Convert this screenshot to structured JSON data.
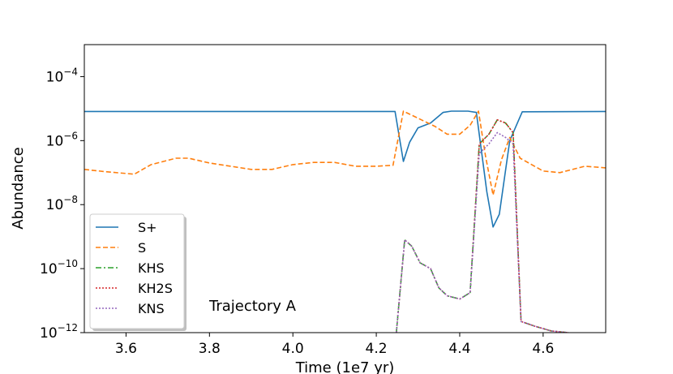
{
  "chart_data": {
    "type": "line",
    "title": "",
    "xlabel": "Time (1e7 yr)",
    "ylabel": "Abundance",
    "xlim": [
      3.5,
      4.75
    ],
    "ylim_log10": [
      -12,
      -3
    ],
    "yscale": "log",
    "xticks": [
      3.6,
      3.8,
      4.0,
      4.2,
      4.4,
      4.6
    ],
    "xtick_labels": [
      "3.6",
      "3.8",
      "4.0",
      "4.2",
      "4.4",
      "4.6"
    ],
    "yticks_log10": [
      -12,
      -10,
      -8,
      -6,
      -4
    ],
    "ytick_labels": [
      {
        "base": "10",
        "exp": "−12"
      },
      {
        "base": "10",
        "exp": "−10"
      },
      {
        "base": "10",
        "exp": "−8"
      },
      {
        "base": "10",
        "exp": "−6"
      },
      {
        "base": "10",
        "exp": "−4"
      }
    ],
    "grid": false,
    "legend_position": "lower-left",
    "annotation": "Trajectory A",
    "series": [
      {
        "name": "S+",
        "color": "#1f77b4",
        "dash": "solid",
        "x": [
          3.5,
          3.7,
          4.0,
          4.245,
          4.265,
          4.28,
          4.3,
          4.33,
          4.36,
          4.38,
          4.4,
          4.42,
          4.44,
          4.465,
          4.48,
          4.495,
          4.52,
          4.55,
          4.75
        ],
        "y_log10": [
          -5.09,
          -5.09,
          -5.09,
          -5.09,
          -6.65,
          -6.05,
          -5.6,
          -5.45,
          -5.12,
          -5.08,
          -5.08,
          -5.08,
          -5.12,
          -7.6,
          -8.7,
          -8.3,
          -6.0,
          -5.1,
          -5.09
        ]
      },
      {
        "name": "S",
        "color": "#ff7f0e",
        "dash": "dashed",
        "x": [
          3.5,
          3.55,
          3.62,
          3.66,
          3.72,
          3.75,
          3.8,
          3.9,
          3.95,
          4.0,
          4.05,
          4.1,
          4.15,
          4.2,
          4.24,
          4.265,
          4.3,
          4.34,
          4.37,
          4.4,
          4.425,
          4.445,
          4.462,
          4.48,
          4.5,
          4.52,
          4.545,
          4.6,
          4.64,
          4.7,
          4.75
        ],
        "y_log10": [
          -6.9,
          -6.97,
          -7.05,
          -6.75,
          -6.55,
          -6.55,
          -6.7,
          -6.9,
          -6.9,
          -6.75,
          -6.68,
          -6.68,
          -6.8,
          -6.8,
          -6.77,
          -5.08,
          -5.3,
          -5.55,
          -5.8,
          -5.8,
          -5.52,
          -5.08,
          -6.5,
          -7.7,
          -6.6,
          -5.9,
          -6.55,
          -6.95,
          -7.0,
          -6.8,
          -6.85
        ]
      },
      {
        "name": "KHS",
        "color": "#2ca02c",
        "dash": "dashdot",
        "x": [
          4.248,
          4.268,
          4.285,
          4.305,
          4.33,
          4.35,
          4.37,
          4.4,
          4.425,
          4.447,
          4.47,
          4.49,
          4.51,
          4.528,
          4.547,
          4.58,
          4.62,
          4.66
        ],
        "y_log10": [
          -12.0,
          -9.1,
          -9.3,
          -9.82,
          -10.0,
          -10.6,
          -10.85,
          -10.95,
          -10.75,
          -6.1,
          -5.8,
          -5.35,
          -5.45,
          -5.75,
          -11.65,
          -11.8,
          -11.95,
          -12.0
        ]
      },
      {
        "name": "KH2S",
        "color": "#d62728",
        "dash": "dotted",
        "x": [
          4.248,
          4.268,
          4.285,
          4.305,
          4.33,
          4.35,
          4.37,
          4.4,
          4.425,
          4.447,
          4.47,
          4.49,
          4.51,
          4.528,
          4.547,
          4.58,
          4.62,
          4.66
        ],
        "y_log10": [
          -12.0,
          -9.1,
          -9.3,
          -9.82,
          -10.0,
          -10.6,
          -10.85,
          -10.95,
          -10.75,
          -6.1,
          -5.8,
          -5.35,
          -5.45,
          -5.75,
          -11.65,
          -11.8,
          -11.95,
          -12.0
        ]
      },
      {
        "name": "KNS",
        "color": "#9467bd",
        "dash": "dotted",
        "x": [
          4.248,
          4.268,
          4.285,
          4.305,
          4.33,
          4.35,
          4.37,
          4.4,
          4.425,
          4.447,
          4.47,
          4.49,
          4.51,
          4.528,
          4.547,
          4.58,
          4.62,
          4.66
        ],
        "y_log10": [
          -12.0,
          -9.1,
          -9.3,
          -9.82,
          -10.0,
          -10.6,
          -10.85,
          -10.95,
          -10.75,
          -6.4,
          -6.1,
          -5.75,
          -5.9,
          -6.1,
          -11.65,
          -11.8,
          -11.95,
          -12.0
        ]
      }
    ]
  }
}
